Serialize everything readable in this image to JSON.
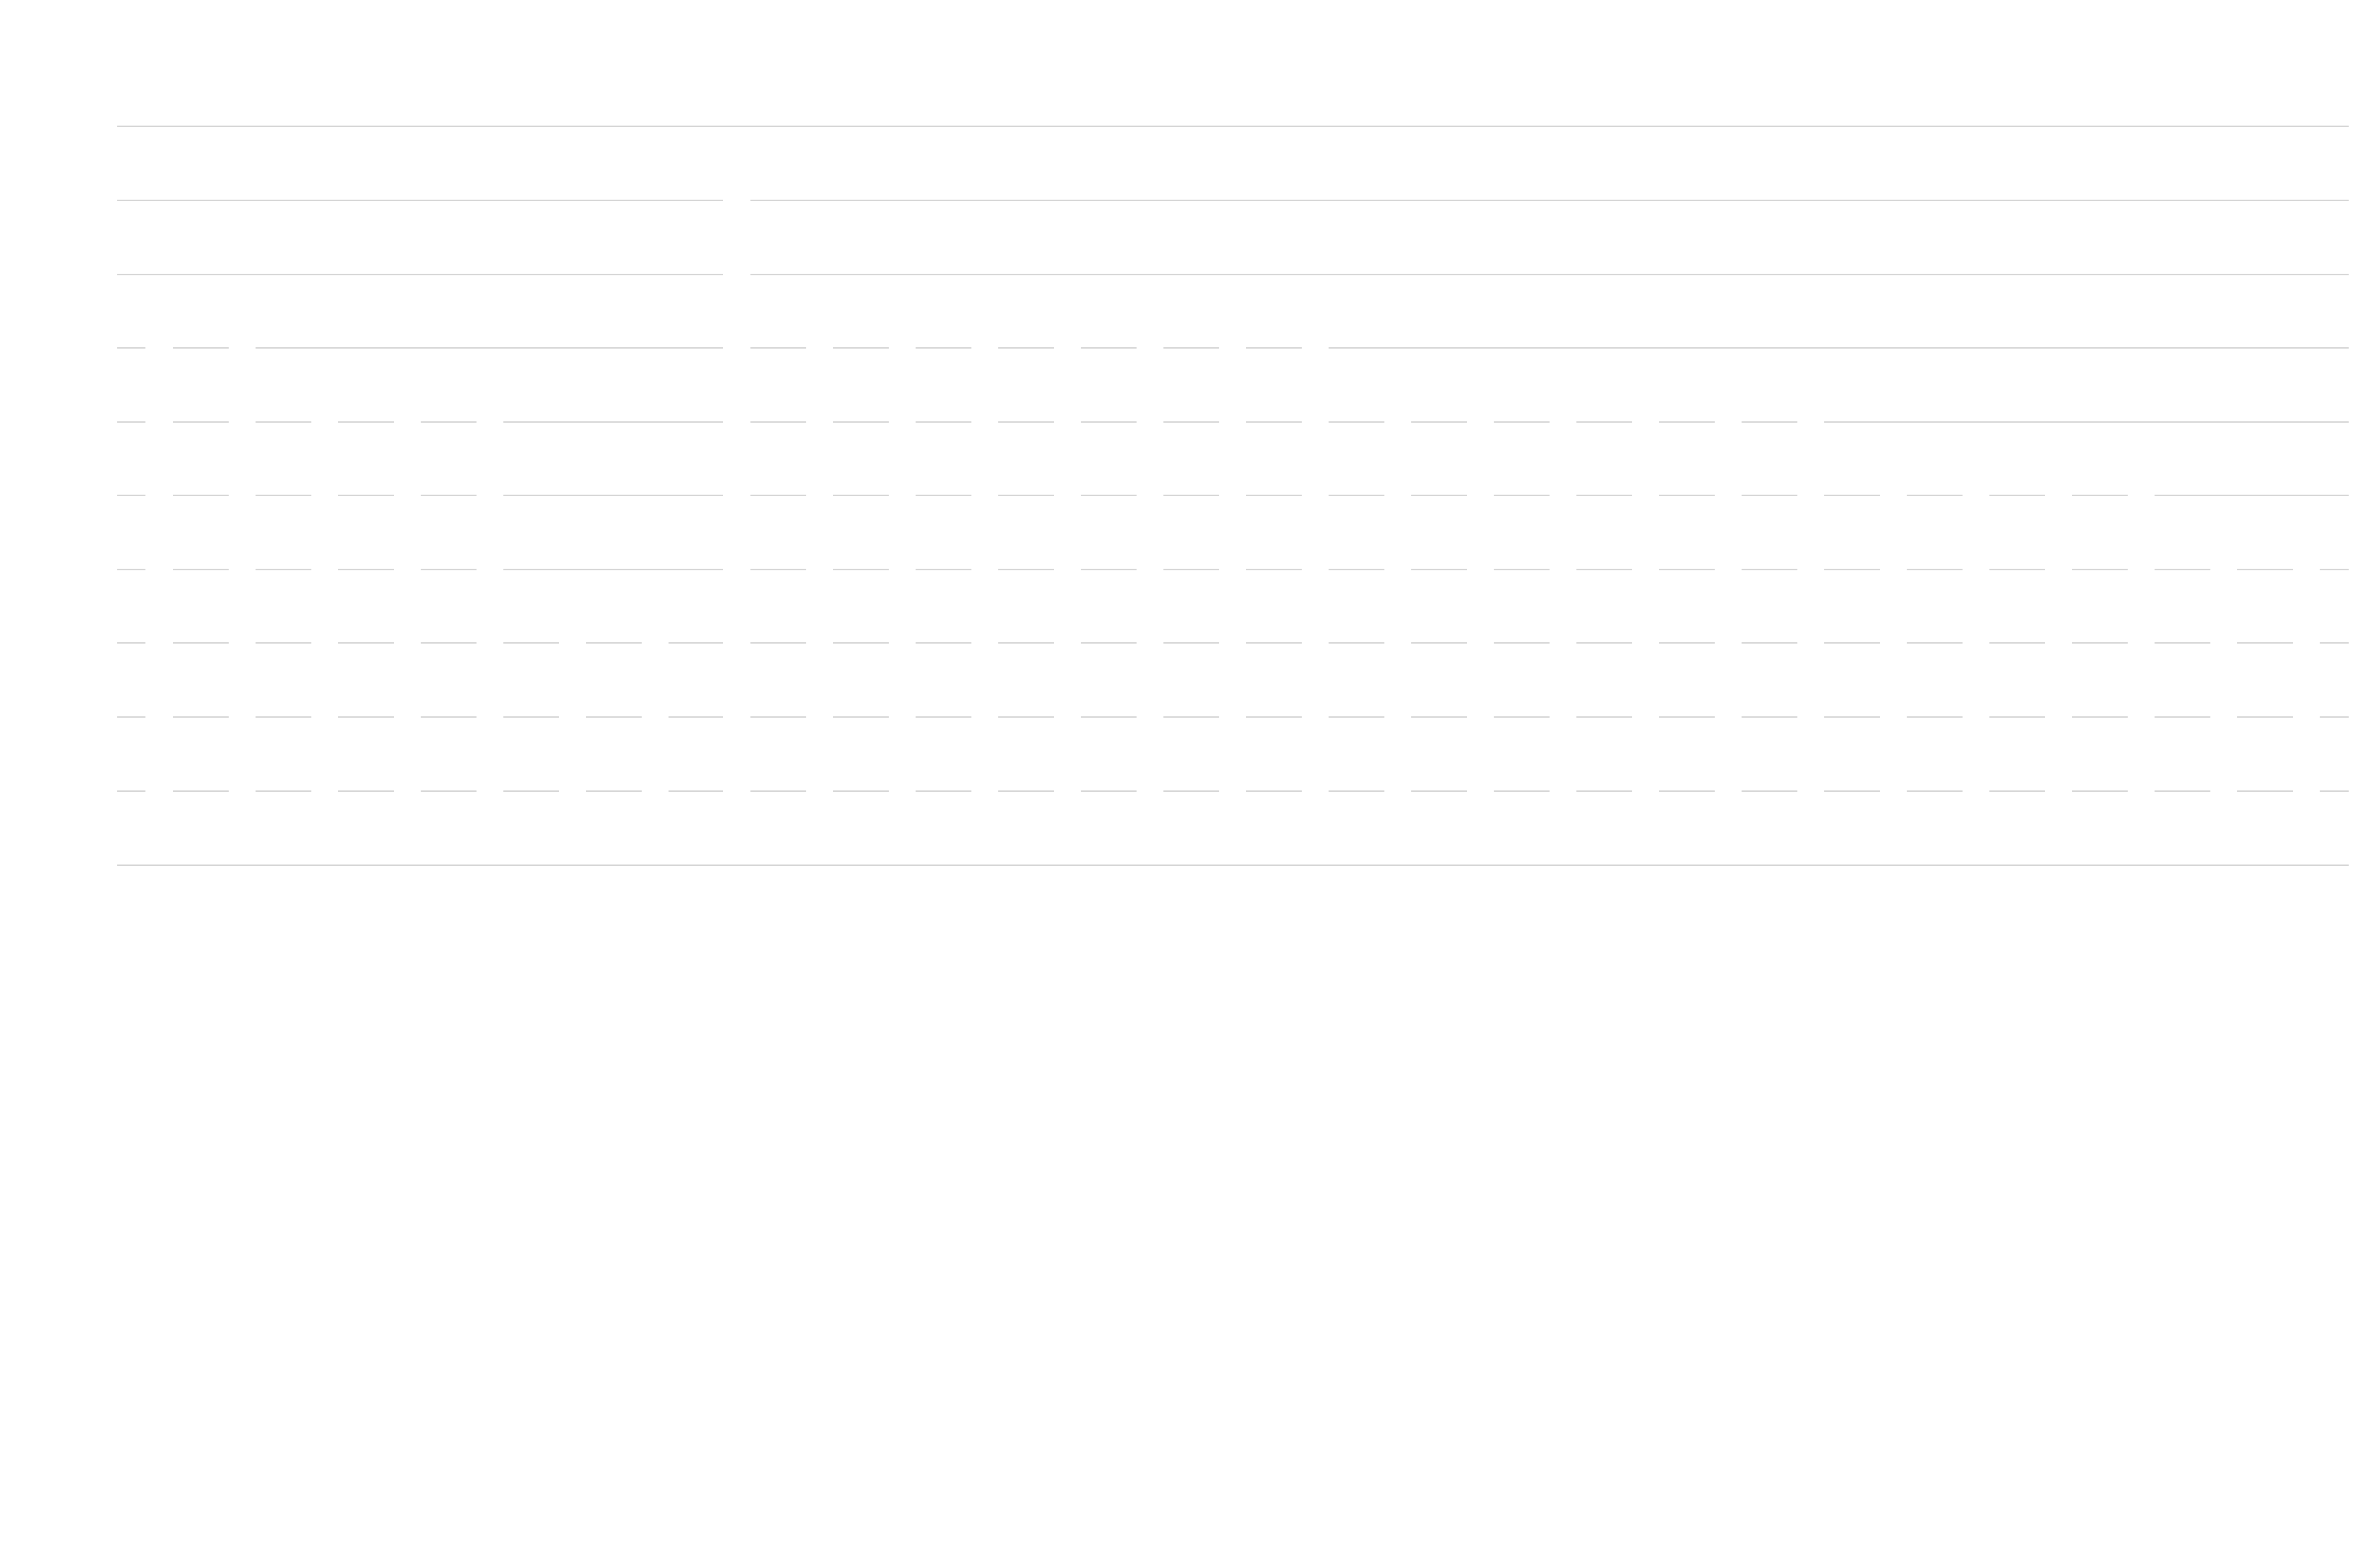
{
  "colors": {
    "background": "#ffffff",
    "rule": "#d4d4d4"
  }
}
